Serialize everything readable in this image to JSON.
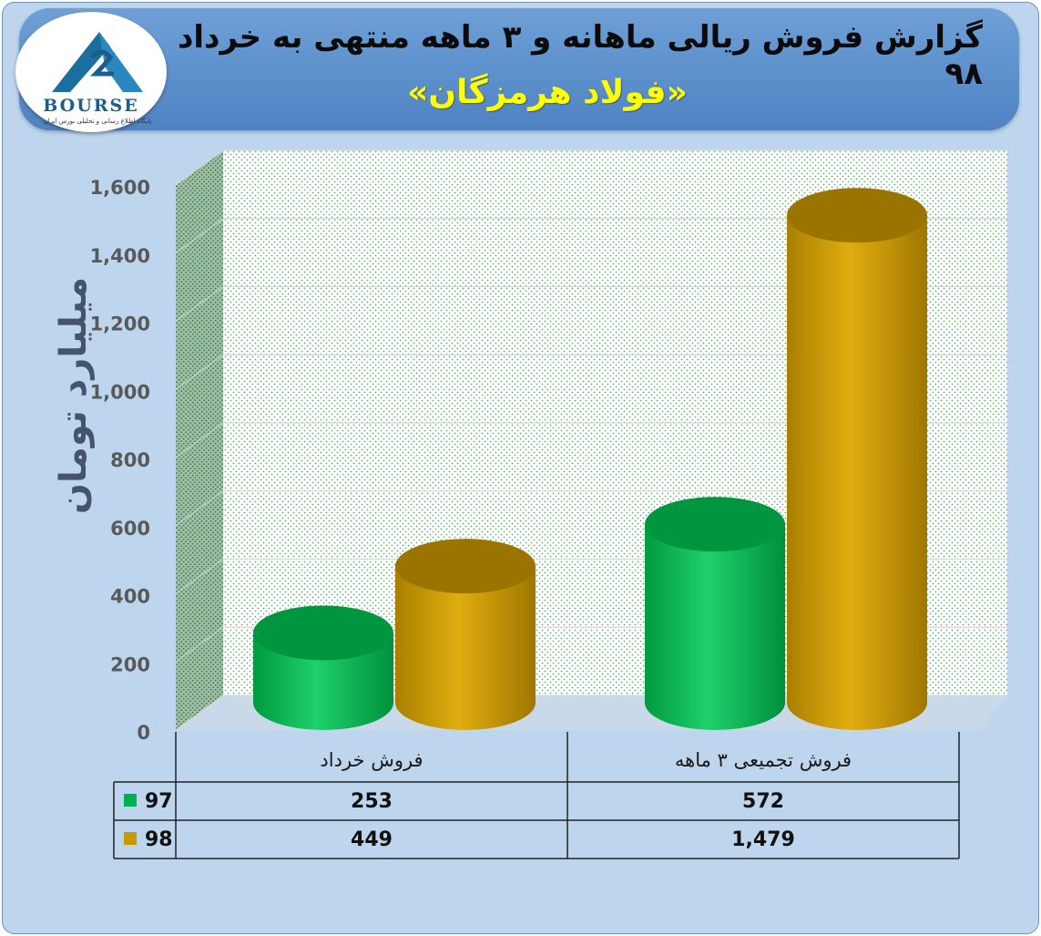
{
  "header": {
    "title": "گزارش فروش ریالی ماهانه و ۳ ماهه منتهی به خرداد ۹۸",
    "subtitle": "«فولاد هرمزگان»"
  },
  "logo": {
    "word": "BOURSE",
    "tagline": "پایگاه اطلاع رسانی و تحلیلی بورس ایران"
  },
  "chart_data": {
    "type": "bar",
    "title": "گزارش فروش ریالی ماهانه و ۳ ماهه منتهی به خرداد ۹۸",
    "ylabel": "میلیارد تومان",
    "ylim": [
      0,
      1600
    ],
    "yticks": [
      "0",
      "200",
      "400",
      "600",
      "800",
      "1,000",
      "1,200",
      "1,400",
      "1,600"
    ],
    "categories": [
      "فروش خرداد",
      "فروش تجمیعی ۳ ماهه"
    ],
    "series": [
      {
        "name": "97",
        "color": "#00b050",
        "values": [
          253,
          572
        ],
        "labels": [
          "253",
          "572"
        ]
      },
      {
        "name": "98",
        "color": "#c89a00",
        "values": [
          449,
          1479
        ],
        "labels": [
          "449",
          "1,479"
        ]
      }
    ],
    "grid": true,
    "legend": "data-table"
  }
}
